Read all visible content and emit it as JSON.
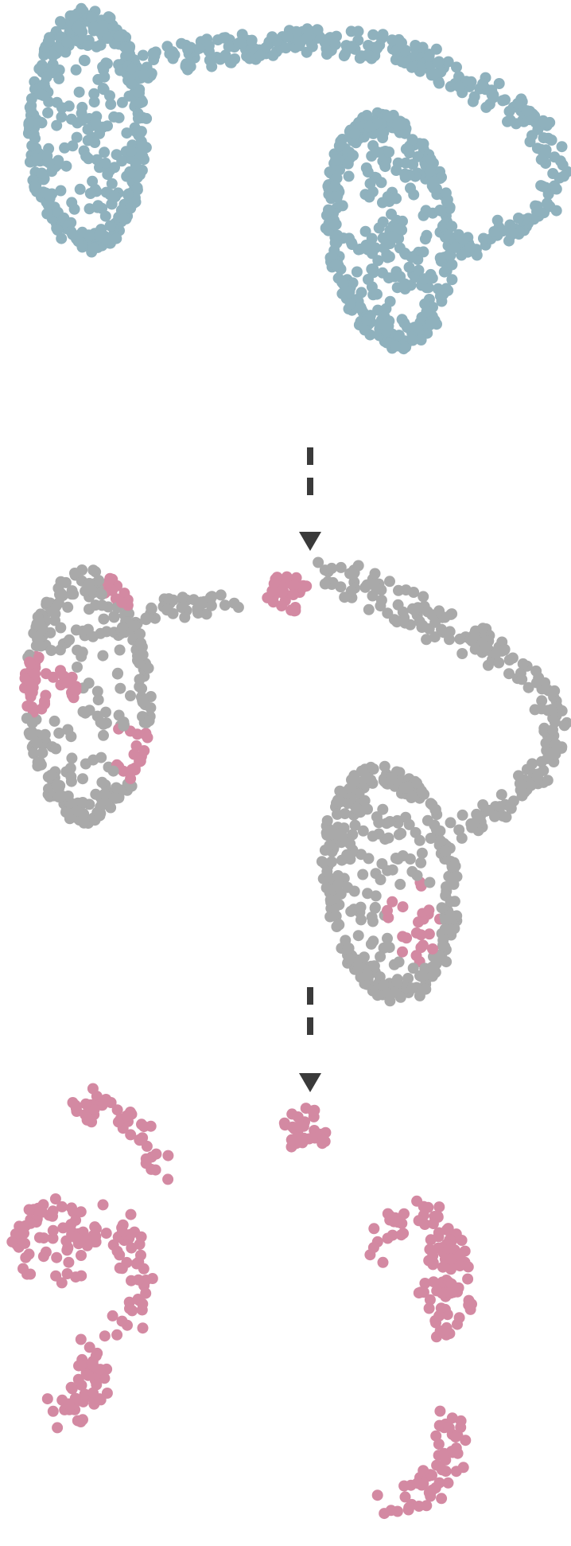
{
  "colors": {
    "background": "#ffffff",
    "original_cluster": "#8fb1bd",
    "deselected": "#a9a9a9",
    "selected": "#d389a2",
    "arrow": "#3a3a3a"
  },
  "icons": {
    "transition_arrow": "dashed-down-arrow"
  },
  "panels": [
    {
      "id": "full-manifold",
      "point_color": "original_cluster",
      "shown_parts": [
        "left-lobe",
        "bridge",
        "right-lobe",
        "right-loop"
      ]
    },
    {
      "id": "highlighted-subset",
      "point_color": "deselected",
      "highlight_color": "selected",
      "shown_parts": [
        "left-lobe",
        "bridge-fragment",
        "isolated-cluster",
        "right-lobe",
        "right-loop"
      ]
    },
    {
      "id": "extracted-subset",
      "point_color": "selected",
      "shown_parts": [
        "left-fragments",
        "isolated-cluster",
        "right-fragments"
      ]
    }
  ]
}
